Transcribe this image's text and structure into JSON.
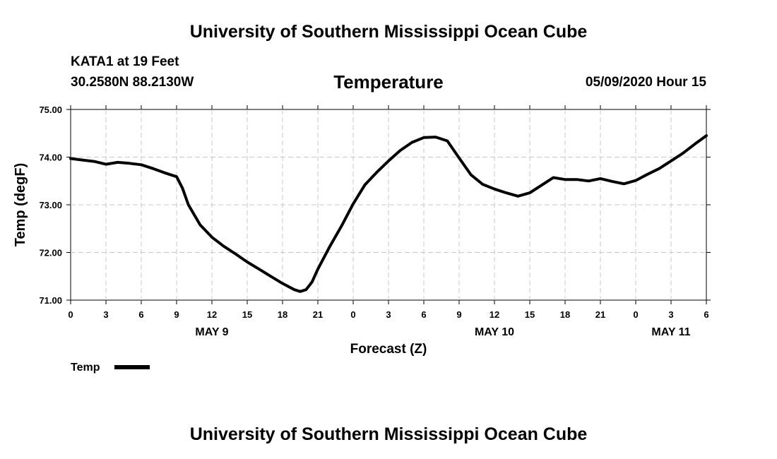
{
  "header": {
    "top_title": "University of Southern Mississippi Ocean Cube",
    "station": "KATA1 at 19 Feet",
    "coords": "30.2580N 88.2130W",
    "datetime": "05/09/2020 Hour 15",
    "bottom_title": "University of Southern Mississippi Ocean Cube"
  },
  "chart_data": {
    "type": "line",
    "title": "Temperature",
    "xlabel": "Forecast (Z)",
    "ylabel": "Temp (degF)",
    "x_unit": "forecast hour",
    "xlim": [
      0,
      54
    ],
    "ylim": [
      71,
      75
    ],
    "y_ticks": [
      "71.00",
      "72.00",
      "73.00",
      "74.00",
      "75.00"
    ],
    "x_ticks": [
      {
        "x": 0,
        "label": "0"
      },
      {
        "x": 3,
        "label": "3"
      },
      {
        "x": 6,
        "label": "6"
      },
      {
        "x": 9,
        "label": "9"
      },
      {
        "x": 12,
        "label": "12"
      },
      {
        "x": 15,
        "label": "15"
      },
      {
        "x": 18,
        "label": "18"
      },
      {
        "x": 21,
        "label": "21"
      },
      {
        "x": 24,
        "label": "0"
      },
      {
        "x": 27,
        "label": "3"
      },
      {
        "x": 30,
        "label": "6"
      },
      {
        "x": 33,
        "label": "9"
      },
      {
        "x": 36,
        "label": "12"
      },
      {
        "x": 39,
        "label": "15"
      },
      {
        "x": 42,
        "label": "18"
      },
      {
        "x": 45,
        "label": "21"
      },
      {
        "x": 48,
        "label": "0"
      },
      {
        "x": 51,
        "label": "3"
      },
      {
        "x": 54,
        "label": "6"
      }
    ],
    "day_labels": [
      {
        "x": 12,
        "label": "MAY 9"
      },
      {
        "x": 36,
        "label": "MAY 10"
      },
      {
        "x": 51,
        "label": "MAY 11"
      }
    ],
    "grid": true,
    "legend": "bottom-left",
    "series": [
      {
        "name": "Temp",
        "color": "#000000",
        "x": [
          0,
          1,
          2,
          3,
          4,
          5,
          6,
          7,
          8,
          9,
          9.5,
          10,
          11,
          12,
          13,
          14,
          15,
          16,
          17,
          18,
          19,
          19.5,
          20,
          20.5,
          21,
          22,
          23,
          24,
          25,
          26,
          27,
          28,
          29,
          30,
          31,
          32,
          33,
          34,
          35,
          36,
          37,
          38,
          39,
          40,
          41,
          42,
          43,
          44,
          45,
          46,
          47,
          48,
          49,
          50,
          51,
          52,
          53,
          54
        ],
        "values": [
          73.97,
          73.94,
          73.91,
          73.85,
          73.89,
          73.87,
          73.84,
          73.76,
          73.67,
          73.59,
          73.35,
          73.0,
          72.58,
          72.32,
          72.13,
          71.97,
          71.8,
          71.65,
          71.5,
          71.35,
          71.22,
          71.18,
          71.22,
          71.38,
          71.65,
          72.12,
          72.55,
          73.02,
          73.42,
          73.68,
          73.92,
          74.14,
          74.31,
          74.41,
          74.42,
          74.34,
          73.98,
          73.63,
          73.43,
          73.33,
          73.25,
          73.18,
          73.25,
          73.41,
          73.57,
          73.53,
          73.53,
          73.5,
          73.55,
          73.49,
          73.44,
          73.51,
          73.64,
          73.76,
          73.92,
          74.08,
          74.27,
          74.45
        ]
      }
    ]
  }
}
